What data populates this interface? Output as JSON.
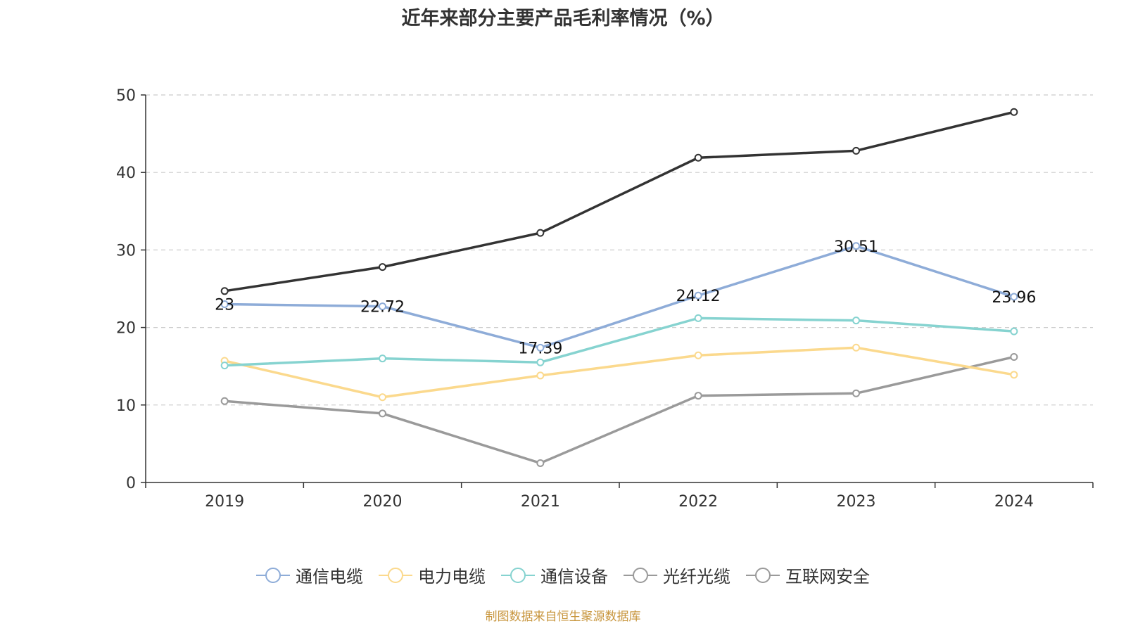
{
  "chart_data": {
    "type": "line",
    "title": "近年来部分主要产品毛利率情况（%）",
    "categories": [
      "2019",
      "2020",
      "2021",
      "2022",
      "2023",
      "2024"
    ],
    "ylim": [
      0,
      50
    ],
    "yticks": [
      0,
      10,
      20,
      30,
      40,
      50
    ],
    "grid": true,
    "legend_position": "bottom",
    "series": [
      {
        "name": "通信电缆",
        "color": "#8eacd8",
        "values": [
          23,
          22.72,
          17.39,
          24.12,
          30.51,
          23.96
        ],
        "data_labels": [
          "23",
          "22.72",
          "17.39",
          "24.12",
          "30.51",
          "23.96"
        ]
      },
      {
        "name": "电力电缆",
        "color": "#fbd98d",
        "values": [
          15.7,
          11.0,
          13.8,
          16.4,
          17.4,
          13.9
        ]
      },
      {
        "name": "通信设备",
        "color": "#86d3d0",
        "values": [
          15.1,
          16.0,
          15.5,
          21.2,
          20.9,
          19.5
        ]
      },
      {
        "name": "光纤光缆",
        "color": "#9a9a9a",
        "values": [
          10.5,
          8.9,
          2.5,
          11.2,
          11.5,
          16.2
        ]
      },
      {
        "name": "互联网安全",
        "color": "#333333",
        "values": [
          24.7,
          27.8,
          32.2,
          41.9,
          42.8,
          47.8
        ]
      }
    ],
    "legend_icon_colors": [
      "#8eacd8",
      "#fbd98d",
      "#86d3d0",
      "#9a9a9a",
      "#9a9a9a"
    ]
  },
  "source_note": "制图数据来自恒生聚源数据库"
}
